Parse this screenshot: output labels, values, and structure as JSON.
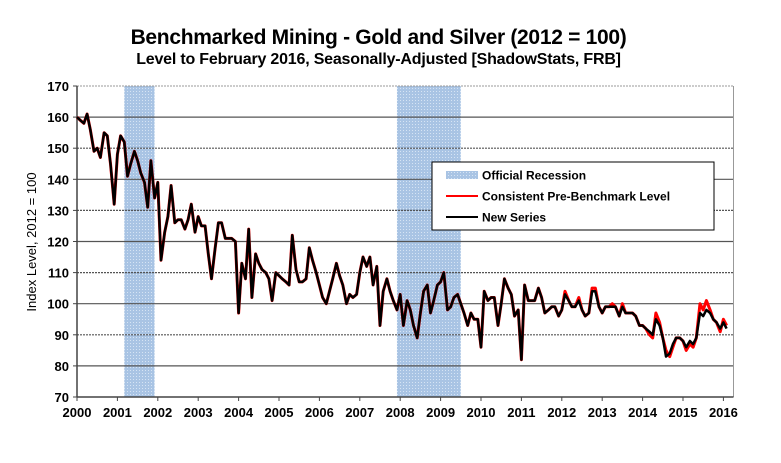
{
  "chart_data": {
    "type": "line",
    "title": "Benchmarked Mining - Gold and Silver (2012 = 100)",
    "subtitle": "Level to February 2016, Seasonally-Adjusted [ShadowStats, FRB]",
    "xlabel": "",
    "ylabel": "Index Level, 2012 = 100",
    "xlim": [
      2000,
      2016.25
    ],
    "ylim": [
      70,
      170
    ],
    "yticks": [
      70,
      80,
      90,
      100,
      110,
      120,
      130,
      140,
      150,
      160,
      170
    ],
    "xticks": [
      2000,
      2001,
      2002,
      2003,
      2004,
      2005,
      2006,
      2007,
      2008,
      2009,
      2010,
      2011,
      2012,
      2013,
      2014,
      2015,
      2016
    ],
    "grid": true,
    "legend_position": "right-center",
    "legend": [
      {
        "label": "Official Recession",
        "kind": "shade",
        "color": "#a9c4e4"
      },
      {
        "label": "Consistent Pre-Benchmark Level",
        "kind": "line",
        "color": "#ff0000"
      },
      {
        "label": "New Series",
        "kind": "line",
        "color": "#000000"
      }
    ],
    "recessions": [
      [
        2001.17,
        2001.92
      ],
      [
        2007.92,
        2009.5
      ]
    ],
    "series": [
      {
        "name": "Consistent Pre-Benchmark Level",
        "color": "#ff0000",
        "x": [
          2000.0,
          2000.08,
          2000.17,
          2000.25,
          2000.33,
          2000.42,
          2000.5,
          2000.58,
          2000.67,
          2000.75,
          2000.83,
          2000.92,
          2001.0,
          2001.08,
          2001.17,
          2001.25,
          2001.33,
          2001.42,
          2001.5,
          2001.58,
          2001.67,
          2001.75,
          2001.83,
          2001.92,
          2002.0,
          2002.08,
          2002.17,
          2002.25,
          2002.33,
          2002.42,
          2002.5,
          2002.58,
          2002.67,
          2002.75,
          2002.83,
          2002.92,
          2003.0,
          2003.08,
          2003.17,
          2003.25,
          2003.33,
          2003.42,
          2003.5,
          2003.58,
          2003.67,
          2003.75,
          2003.83,
          2003.92,
          2004.0,
          2004.08,
          2004.17,
          2004.25,
          2004.33,
          2004.42,
          2004.5,
          2004.58,
          2004.67,
          2004.75,
          2004.83,
          2004.92,
          2005.0,
          2005.08,
          2005.17,
          2005.25,
          2005.33,
          2005.42,
          2005.5,
          2005.58,
          2005.67,
          2005.75,
          2005.83,
          2005.92,
          2006.0,
          2006.08,
          2006.17,
          2006.25,
          2006.33,
          2006.42,
          2006.5,
          2006.58,
          2006.67,
          2006.75,
          2006.83,
          2006.92,
          2007.0,
          2007.08,
          2007.17,
          2007.25,
          2007.33,
          2007.42,
          2007.5,
          2007.58,
          2007.67,
          2007.75,
          2007.83,
          2007.92,
          2008.0,
          2008.08,
          2008.17,
          2008.25,
          2008.33,
          2008.42,
          2008.5,
          2008.58,
          2008.67,
          2008.75,
          2008.83,
          2008.92,
          2009.0,
          2009.08,
          2009.17,
          2009.25,
          2009.33,
          2009.42,
          2009.5,
          2009.58,
          2009.67,
          2009.75,
          2009.83,
          2009.92,
          2010.0,
          2010.08,
          2010.17,
          2010.25,
          2010.33,
          2010.42,
          2010.5,
          2010.58,
          2010.67,
          2010.75,
          2010.83,
          2010.92,
          2011.0,
          2011.08,
          2011.17,
          2011.25,
          2011.33,
          2011.42,
          2011.5,
          2011.58,
          2011.67,
          2011.75,
          2011.83,
          2011.92,
          2012.0,
          2012.08,
          2012.17,
          2012.25,
          2012.33,
          2012.42,
          2012.5,
          2012.58,
          2012.67,
          2012.75,
          2012.83,
          2012.92,
          2013.0,
          2013.08,
          2013.17,
          2013.25,
          2013.33,
          2013.42,
          2013.5,
          2013.58,
          2013.67,
          2013.75,
          2013.83,
          2013.92,
          2014.0,
          2014.08,
          2014.17,
          2014.25,
          2014.33,
          2014.42,
          2014.5,
          2014.58,
          2014.67,
          2014.75,
          2014.83,
          2014.92,
          2015.0,
          2015.08,
          2015.17,
          2015.25,
          2015.33,
          2015.42,
          2015.5,
          2015.58,
          2015.67,
          2015.75,
          2015.83,
          2015.92,
          2016.0,
          2016.08
        ],
        "y": [
          160,
          159,
          158,
          161,
          156,
          149,
          150,
          147,
          155,
          154,
          145,
          132,
          148,
          154,
          152,
          141,
          145,
          149,
          146,
          142,
          139,
          131,
          146,
          134,
          139,
          114,
          123,
          128,
          138,
          126,
          127,
          127,
          124,
          127,
          132,
          123,
          128,
          125,
          125,
          116,
          108,
          118,
          126,
          126,
          121,
          121,
          121,
          120,
          97,
          113,
          108,
          124,
          102,
          116,
          113,
          111,
          110,
          108,
          101,
          110,
          109,
          108,
          107,
          106,
          122,
          111,
          107,
          107,
          108,
          118,
          114,
          110,
          106,
          102,
          100,
          104,
          108,
          113,
          109,
          106,
          100,
          103,
          102,
          103,
          110,
          115,
          112,
          115,
          106,
          112,
          93,
          104,
          108,
          104,
          101,
          98,
          103,
          93,
          101,
          98,
          93,
          89,
          97,
          104,
          106,
          97,
          101,
          106,
          107,
          110,
          98,
          99,
          102,
          103,
          100,
          97,
          93,
          97,
          95,
          95,
          86,
          104,
          101,
          102,
          102,
          93,
          100,
          108,
          105,
          103,
          96,
          98,
          82,
          106,
          101,
          101,
          101,
          105,
          102,
          97,
          98,
          99,
          99,
          96,
          98,
          104,
          101,
          99,
          99,
          102,
          98,
          96,
          97,
          105,
          105,
          99,
          97,
          99,
          99,
          100,
          99,
          96,
          100,
          97,
          97,
          97,
          96,
          93,
          93,
          92,
          90,
          89,
          97,
          94,
          89,
          85,
          83,
          86,
          89,
          89,
          88,
          85,
          87,
          86,
          89,
          100,
          98,
          101,
          98,
          95,
          94,
          91,
          95,
          93
        ],
        "line_width": 3
      },
      {
        "name": "New Series",
        "color": "#000000",
        "x": [
          2000.0,
          2000.08,
          2000.17,
          2000.25,
          2000.33,
          2000.42,
          2000.5,
          2000.58,
          2000.67,
          2000.75,
          2000.83,
          2000.92,
          2001.0,
          2001.08,
          2001.17,
          2001.25,
          2001.33,
          2001.42,
          2001.5,
          2001.58,
          2001.67,
          2001.75,
          2001.83,
          2001.92,
          2002.0,
          2002.08,
          2002.17,
          2002.25,
          2002.33,
          2002.42,
          2002.5,
          2002.58,
          2002.67,
          2002.75,
          2002.83,
          2002.92,
          2003.0,
          2003.08,
          2003.17,
          2003.25,
          2003.33,
          2003.42,
          2003.5,
          2003.58,
          2003.67,
          2003.75,
          2003.83,
          2003.92,
          2004.0,
          2004.08,
          2004.17,
          2004.25,
          2004.33,
          2004.42,
          2004.5,
          2004.58,
          2004.67,
          2004.75,
          2004.83,
          2004.92,
          2005.0,
          2005.08,
          2005.17,
          2005.25,
          2005.33,
          2005.42,
          2005.5,
          2005.58,
          2005.67,
          2005.75,
          2005.83,
          2005.92,
          2006.0,
          2006.08,
          2006.17,
          2006.25,
          2006.33,
          2006.42,
          2006.5,
          2006.58,
          2006.67,
          2006.75,
          2006.83,
          2006.92,
          2007.0,
          2007.08,
          2007.17,
          2007.25,
          2007.33,
          2007.42,
          2007.5,
          2007.58,
          2007.67,
          2007.75,
          2007.83,
          2007.92,
          2008.0,
          2008.08,
          2008.17,
          2008.25,
          2008.33,
          2008.42,
          2008.5,
          2008.58,
          2008.67,
          2008.75,
          2008.83,
          2008.92,
          2009.0,
          2009.08,
          2009.17,
          2009.25,
          2009.33,
          2009.42,
          2009.5,
          2009.58,
          2009.67,
          2009.75,
          2009.83,
          2009.92,
          2010.0,
          2010.08,
          2010.17,
          2010.25,
          2010.33,
          2010.42,
          2010.5,
          2010.58,
          2010.67,
          2010.75,
          2010.83,
          2010.92,
          2011.0,
          2011.08,
          2011.17,
          2011.25,
          2011.33,
          2011.42,
          2011.5,
          2011.58,
          2011.67,
          2011.75,
          2011.83,
          2011.92,
          2012.0,
          2012.08,
          2012.17,
          2012.25,
          2012.33,
          2012.42,
          2012.5,
          2012.58,
          2012.67,
          2012.75,
          2012.83,
          2012.92,
          2013.0,
          2013.08,
          2013.17,
          2013.25,
          2013.33,
          2013.42,
          2013.5,
          2013.58,
          2013.67,
          2013.75,
          2013.83,
          2013.92,
          2014.0,
          2014.08,
          2014.17,
          2014.25,
          2014.33,
          2014.42,
          2014.5,
          2014.58,
          2014.67,
          2014.75,
          2014.83,
          2014.92,
          2015.0,
          2015.08,
          2015.17,
          2015.25,
          2015.33,
          2015.42,
          2015.5,
          2015.58,
          2015.67,
          2015.75,
          2015.83,
          2015.92,
          2016.0,
          2016.08
        ],
        "y": [
          160,
          159,
          158,
          161,
          156,
          149,
          150,
          147,
          155,
          154,
          145,
          132,
          148,
          154,
          152,
          141,
          145,
          149,
          146,
          142,
          139,
          131,
          146,
          134,
          139,
          114,
          123,
          128,
          138,
          126,
          127,
          127,
          124,
          127,
          132,
          123,
          128,
          125,
          125,
          116,
          108,
          118,
          126,
          126,
          121,
          121,
          121,
          120,
          97,
          113,
          108,
          124,
          102,
          116,
          113,
          111,
          110,
          108,
          101,
          110,
          109,
          108,
          107,
          106,
          122,
          111,
          107,
          107,
          108,
          118,
          114,
          110,
          106,
          102,
          100,
          104,
          108,
          113,
          109,
          106,
          100,
          103,
          102,
          103,
          110,
          115,
          112,
          115,
          106,
          112,
          93,
          104,
          108,
          104,
          101,
          98,
          103,
          93,
          101,
          98,
          93,
          89,
          97,
          104,
          106,
          97,
          101,
          106,
          107,
          110,
          98,
          99,
          102,
          103,
          100,
          97,
          93,
          97,
          95,
          95,
          86,
          104,
          101,
          102,
          102,
          93,
          100,
          108,
          105,
          103,
          96,
          98,
          82,
          106,
          101,
          101,
          101,
          105,
          102,
          97,
          98,
          99,
          99,
          96,
          98,
          103,
          101,
          99,
          99,
          101,
          98,
          96,
          97,
          104,
          104,
          99,
          97,
          99,
          99,
          99,
          99,
          96,
          99,
          97,
          97,
          97,
          96,
          93,
          93,
          92,
          91,
          90,
          95,
          93,
          89,
          83,
          84,
          87,
          89,
          89,
          88,
          86,
          88,
          87,
          89,
          97,
          96,
          98,
          97,
          95,
          94,
          92,
          94,
          92
        ],
        "line_width": 2.5
      }
    ]
  }
}
